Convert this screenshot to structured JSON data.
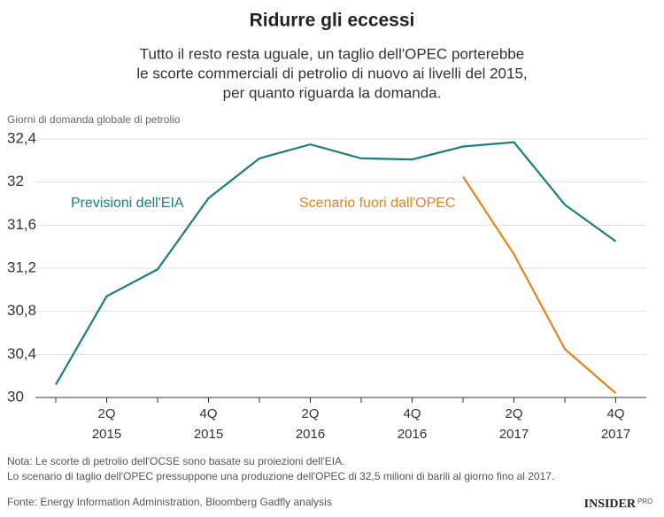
{
  "chart_data": {
    "type": "line",
    "title": "Ridurre gli eccessi",
    "subtitle": [
      "Tutto il resto resta uguale, un taglio dell'OPEC porterebbe",
      "le scorte commerciali di petrolio di nuovo ai livelli del 2015,",
      "per quanto riguarda la domanda."
    ],
    "y_label": "Giorni di domanda globale di petrolio",
    "categories": [
      null,
      [
        "2Q",
        "2015"
      ],
      null,
      [
        "4Q",
        "2015"
      ],
      null,
      [
        "2Q",
        "2016"
      ],
      null,
      [
        "4Q",
        "2016"
      ],
      null,
      [
        "2Q",
        "2017"
      ],
      null,
      [
        "4Q",
        "2017"
      ]
    ],
    "series": [
      {
        "name": "Previsioni dell'EIA",
        "color": "#1b7d7d",
        "values": [
          30.12,
          30.94,
          31.19,
          31.85,
          32.22,
          32.35,
          32.22,
          32.21,
          32.33,
          32.37,
          31.79,
          31.45
        ]
      },
      {
        "name": "Scenario fuori dall'OPEC",
        "color": "#e8821e",
        "values": [
          null,
          null,
          null,
          null,
          null,
          null,
          null,
          null,
          32.05,
          31.33,
          30.45,
          30.04
        ]
      }
    ],
    "ylim": [
      30,
      32.4
    ],
    "yticks": [
      30,
      {
        "value": 30.4,
        "label": "30,4"
      },
      {
        "value": 30.8,
        "label": "30,8"
      },
      {
        "value": 31.2,
        "label": "31,2"
      },
      {
        "value": 31.6,
        "label": "31,6"
      },
      32,
      {
        "value": 32.4,
        "label": "32,4"
      }
    ],
    "grid": true,
    "notes": [
      "Nota: Le scorte di petrolio dell'OCSE sono basate su proiezioni dell'EIA.",
      "Lo scenario di taglio dell'OPEC pressuppone una produzione dell'OPEC di 32,5 milioni di barili al giorno fino al 2017."
    ],
    "source": "Fonte: Energy Information Administration, Bloomberg Gadfly analysis",
    "logo": {
      "text": "INSIDER",
      "badge": "PRO"
    }
  }
}
